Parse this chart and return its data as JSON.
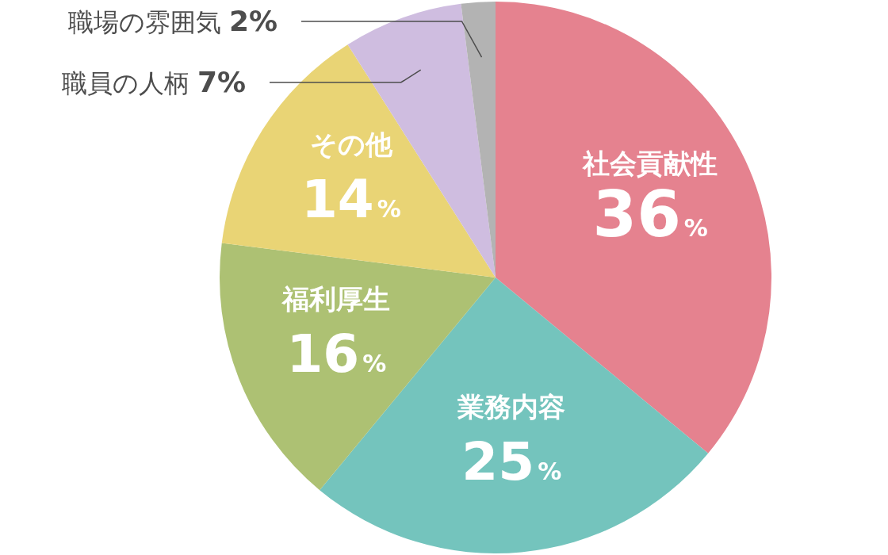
{
  "chart_data": {
    "type": "pie",
    "categories": [
      "社会貢献性",
      "業務内容",
      "福利厚生",
      "その他",
      "職員の人柄",
      "職場の雰囲気"
    ],
    "values": [
      36,
      25,
      16,
      14,
      7,
      2
    ],
    "value_labels": [
      "36%",
      "25%",
      "16%",
      "14%",
      "7%",
      "2%"
    ],
    "colors": [
      "#e5828f",
      "#74c4bd",
      "#adc173",
      "#e9d475",
      "#cfbde0",
      "#b3b3b3"
    ]
  }
}
